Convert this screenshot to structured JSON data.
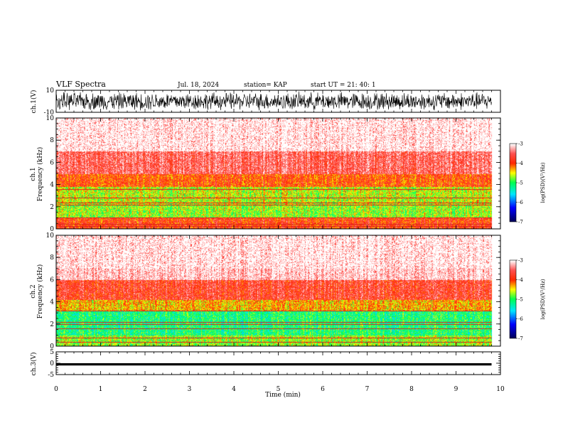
{
  "header": {
    "title": "VLF Spectra",
    "date": "Jul. 18, 2024",
    "station": "station= KAP",
    "start": "start  UT  =   21: 40: 1"
  },
  "colors": {
    "spectrum": [
      "#0000ff",
      "#00ff00",
      "#ffff00",
      "#ff0000",
      "#ffffff"
    ],
    "colorbar": [
      "#000044",
      "#0000ff",
      "#00ffff",
      "#00ff00",
      "#ffff00",
      "#ff0000",
      "#ffffff"
    ],
    "trace": "#000000"
  },
  "chart_data": [
    {
      "type": "line",
      "name": "ch.1 waveform",
      "ylabel": "ch.1(V)",
      "ylim": [
        -10,
        10
      ],
      "yticks": [
        "10",
        "-10"
      ],
      "xlim": [
        0,
        10
      ],
      "description_level": "noise band spanning roughly -8 to 8 V over 0 to 9.8 min"
    },
    {
      "type": "heatmap",
      "name": "ch.1 spectrogram",
      "ylabel": "ch.1\nFrequency (kHz)",
      "ylabel_line1": "ch.1",
      "ylabel_line2": "Frequency  (kHz)",
      "ylim": [
        0,
        10
      ],
      "yticks": [
        "0",
        "2",
        "4",
        "6",
        "8",
        "10"
      ],
      "xlim": [
        0,
        10
      ],
      "data_end_min": 9.8,
      "profile_kHz": [
        {
          "from": 0,
          "to": 1,
          "level": -3.9
        },
        {
          "from": 1,
          "to": 2.2,
          "level": -4.7
        },
        {
          "from": 2.2,
          "to": 3.8,
          "level": -4.6
        },
        {
          "from": 3.8,
          "to": 5,
          "level": -4.0
        },
        {
          "from": 5,
          "to": 7,
          "level": -3.5
        },
        {
          "from": 7,
          "to": 10,
          "level": -3.1
        }
      ],
      "lines_kHz": [
        0.25,
        0.45,
        1.0,
        2.2,
        2.4,
        2.8,
        3.6
      ],
      "colorbar": {
        "label": "log(PSD)(V²/Hz)",
        "ticks": [
          "-3",
          "-4",
          "-5",
          "-6",
          "-7"
        ],
        "range": [
          -7,
          -3
        ]
      }
    },
    {
      "type": "heatmap",
      "name": "ch.2 spectrogram",
      "ylabel_line1": "ch.2",
      "ylabel_line2": "Frequency  (kHz)",
      "ylim": [
        0,
        10
      ],
      "yticks": [
        "0",
        "2",
        "4",
        "6",
        "8",
        "10"
      ],
      "xlim": [
        0,
        10
      ],
      "data_end_min": 9.8,
      "profile_kHz": [
        {
          "from": 0,
          "to": 1,
          "level": -4.7
        },
        {
          "from": 1,
          "to": 3.2,
          "level": -5.1
        },
        {
          "from": 3.2,
          "to": 4.2,
          "level": -4.3
        },
        {
          "from": 4.2,
          "to": 6,
          "level": -3.7
        },
        {
          "from": 6,
          "to": 10,
          "level": -3.1
        }
      ],
      "lines_kHz": [
        0.4,
        0.8,
        1.6,
        2.0,
        2.2,
        3.2
      ],
      "colorbar": {
        "label": "log(PSD)(V²/Hz)",
        "ticks": [
          "-3",
          "-4",
          "-5",
          "-6",
          "-7"
        ],
        "range": [
          -7,
          -3
        ]
      }
    },
    {
      "type": "line",
      "name": "ch.3 waveform",
      "ylabel": "ch.3(V)",
      "ylim": [
        -5,
        5
      ],
      "yticks": [
        "5",
        "0",
        "-5"
      ],
      "xlim": [
        0,
        10
      ],
      "xlabel": "Time  (min)",
      "xticks": [
        "0",
        "1",
        "2",
        "3",
        "4",
        "5",
        "6",
        "7",
        "8",
        "9",
        "10"
      ],
      "description_level": "narrow band between about -1 and 0 V"
    }
  ]
}
